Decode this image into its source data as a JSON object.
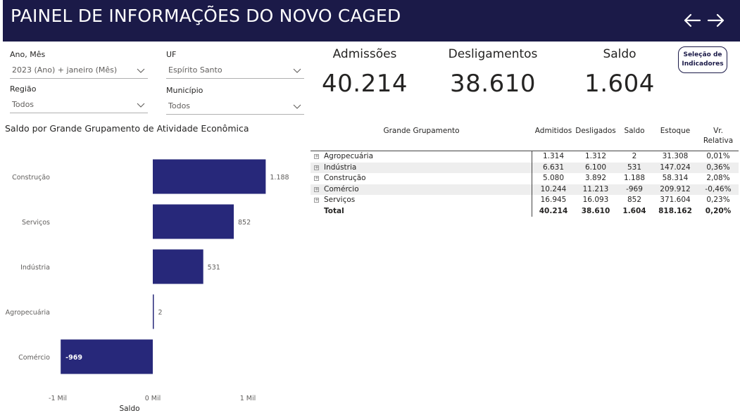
{
  "header": {
    "title": "PAINEL DE INFORMAÇÕES DO NOVO CAGED",
    "back_icon": "arrow-left-icon",
    "forward_icon": "arrow-right-icon"
  },
  "filters": {
    "ano_mes": {
      "label": "Ano, Mês",
      "value": "2023 (Ano) + janeiro (Mês)"
    },
    "uf": {
      "label": "UF",
      "value": "Espírito Santo"
    },
    "regiao": {
      "label": "Região",
      "value": "Todos"
    },
    "municipio": {
      "label": "Município",
      "value": "Todos"
    }
  },
  "kpis": {
    "admissoes": {
      "label": "Admissões",
      "value": "40.214"
    },
    "desligamentos": {
      "label": "Desligamentos",
      "value": "38.610"
    },
    "saldo": {
      "label": "Saldo",
      "value": "1.604"
    }
  },
  "selection_button": {
    "line1": "Seleção de",
    "line2": "Indicadores"
  },
  "colors": {
    "header_bg": "#1b1a48",
    "bar": "#27287a"
  },
  "chart_data": {
    "type": "bar",
    "orientation": "horizontal",
    "title": "Saldo por Grande Grupamento de Atividade Econômica",
    "categories": [
      "Construção",
      "Serviços",
      "Indústria",
      "Agropecuária",
      "Comércio"
    ],
    "values": [
      1188,
      852,
      531,
      2,
      -969
    ],
    "value_labels": [
      "1.188",
      "852",
      "531",
      "2",
      "-969"
    ],
    "xlabel": "Saldo",
    "xlim": [
      -1000,
      1000
    ],
    "xticks": [
      -1000,
      0,
      1000
    ],
    "xtick_labels": [
      "-1 Mil",
      "0 Mil",
      "1 Mil"
    ],
    "grid": false
  },
  "matrix": {
    "headers": {
      "grupo": "Grande Grupamento",
      "admitidos": "Admitidos",
      "desligados": "Desligados",
      "saldo": "Saldo",
      "estoque": "Estoque",
      "vr1": "Vr.",
      "vr2": "Relativa"
    },
    "rows": [
      {
        "name": "Agropecuária",
        "admitidos": "1.314",
        "desligados": "1.312",
        "saldo": "2",
        "estoque": "31.308",
        "vr": "0,01%"
      },
      {
        "name": "Indústria",
        "admitidos": "6.631",
        "desligados": "6.100",
        "saldo": "531",
        "estoque": "147.024",
        "vr": "0,36%"
      },
      {
        "name": "Construção",
        "admitidos": "5.080",
        "desligados": "3.892",
        "saldo": "1.188",
        "estoque": "58.314",
        "vr": "2,08%"
      },
      {
        "name": "Comércio",
        "admitidos": "10.244",
        "desligados": "11.213",
        "saldo": "-969",
        "estoque": "209.912",
        "vr": "-0,46%"
      },
      {
        "name": "Serviços",
        "admitidos": "16.945",
        "desligados": "16.093",
        "saldo": "852",
        "estoque": "371.604",
        "vr": "0,23%"
      }
    ],
    "total": {
      "name": "Total",
      "admitidos": "40.214",
      "desligados": "38.610",
      "saldo": "1.604",
      "estoque": "818.162",
      "vr": "0,20%"
    }
  }
}
